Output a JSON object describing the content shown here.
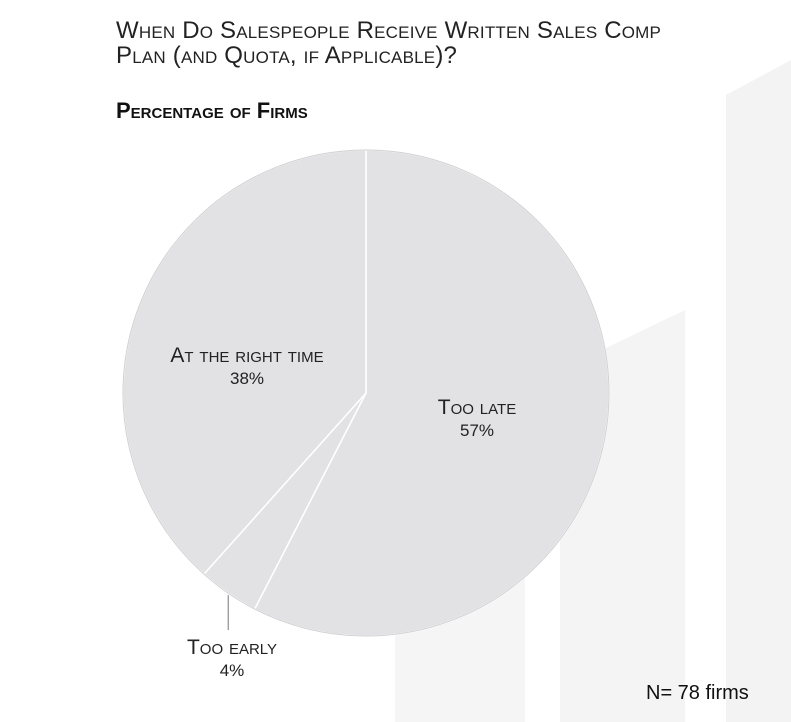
{
  "chart_data": {
    "type": "pie",
    "title": "When Do Salespeople Receive Written Sales Comp Plan (and Quota, if Applicable)?",
    "subtitle": "Percentage of Firms",
    "slices": [
      {
        "label": "Too late",
        "value": 57,
        "value_label": "57%"
      },
      {
        "label": "Too early",
        "value": 4,
        "value_label": "4%"
      },
      {
        "label": "At the right time",
        "value": 38,
        "value_label": "38%"
      }
    ],
    "slice_color": "#e2e1e3",
    "note": "N= 78 firms"
  }
}
